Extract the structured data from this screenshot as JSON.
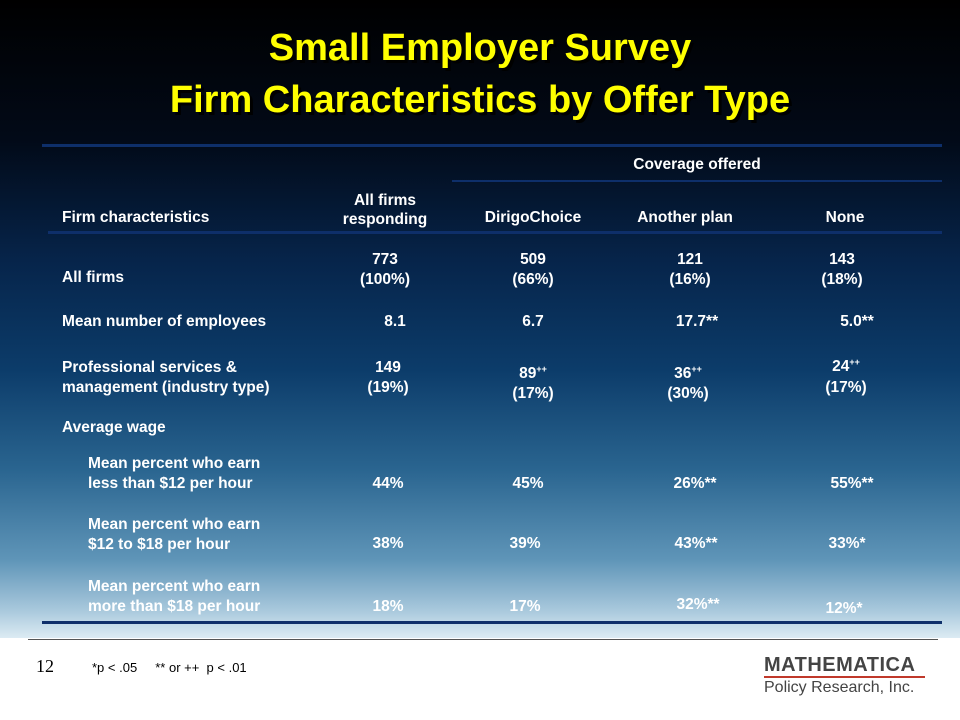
{
  "title": {
    "line1": "Small Employer Survey",
    "line2": "Firm Characteristics by Offer Type"
  },
  "table": {
    "header": {
      "coverage_offered": "Coverage offered",
      "firm_characteristics": "Firm characteristics",
      "all_firms_line1": "All firms",
      "all_firms_line2": "responding",
      "dirigo": "DirigoChoice",
      "another_plan": "Another plan",
      "none": "None"
    },
    "rows": {
      "all_firms": {
        "label": "All firms",
        "all": [
          "773",
          "(100%)"
        ],
        "dirigo": [
          "509",
          "(66%)"
        ],
        "another": [
          "121",
          "(16%)"
        ],
        "none": [
          "143",
          "(18%)"
        ]
      },
      "mean_employees": {
        "label": "Mean number of employees",
        "all": "8.1",
        "dirigo": "6.7",
        "another": "17.7**",
        "none": "5.0**"
      },
      "professional": {
        "label_line1": "Professional services &",
        "label_line2": "management (industry type)",
        "all": [
          "149",
          "(19%)"
        ],
        "dirigo": [
          "89",
          "++",
          "(17%)"
        ],
        "another": [
          "36",
          "++",
          "(30%)"
        ],
        "none": [
          "24",
          "++",
          "(17%)"
        ]
      },
      "average_wage": {
        "label": "Average wage"
      },
      "less_12": {
        "label_line1": "Mean percent who earn",
        "label_line2": "less than $12 per hour",
        "all": "44%",
        "dirigo": "45%",
        "another": "26%**",
        "none": "55%**"
      },
      "12_to_18": {
        "label_line1": "Mean percent who earn",
        "label_line2": "$12 to $18 per hour",
        "all": "38%",
        "dirigo": "39%",
        "another": "43%**",
        "none": "33%*"
      },
      "more_18": {
        "label_line1": "Mean percent who earn",
        "label_line2": "more than $18 per hour",
        "all": "18%",
        "dirigo": "17%",
        "another": "32%**",
        "none": "12%*"
      }
    }
  },
  "footer": {
    "page_number": "12",
    "footnote": "*p < .05     ** or ++  p < .01",
    "logo_main": "MATHEMATICA",
    "logo_sub": "Policy Research, Inc."
  },
  "colors": {
    "title": "#ffff00",
    "table_text": "#ffffff",
    "rules": "#0e2f6a",
    "logo_accent": "#c0392b"
  }
}
